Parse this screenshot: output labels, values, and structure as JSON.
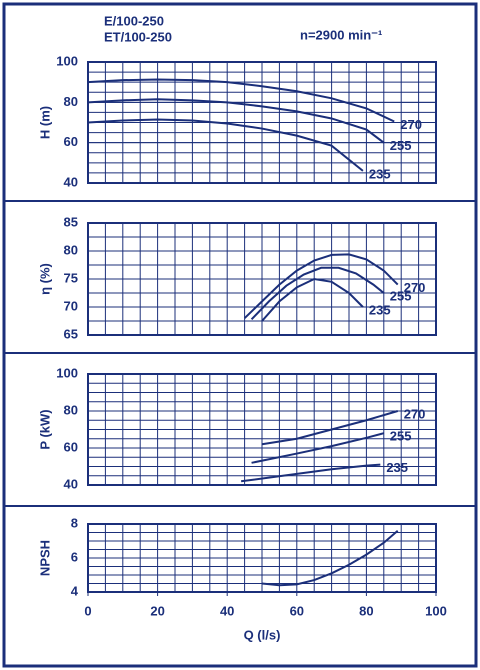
{
  "chart_data": [
    {
      "type": "line",
      "title": "E/100-250",
      "subtitle": "ET/100-250",
      "annotation": "n=2900 min⁻¹",
      "ylabel": "H (m)",
      "xlim": [
        0,
        100
      ],
      "ylim": [
        40,
        100
      ],
      "yticks": [
        40,
        60,
        80,
        100
      ],
      "grid": true,
      "series": [
        {
          "name": "270",
          "color": "#1b2f7a",
          "x": [
            0,
            10,
            20,
            30,
            40,
            50,
            60,
            70,
            80,
            88
          ],
          "values": [
            90,
            91,
            91.3,
            91,
            90,
            88,
            85.5,
            82,
            77,
            70.5
          ]
        },
        {
          "name": "255",
          "color": "#1b2f7a",
          "x": [
            0,
            10,
            20,
            30,
            40,
            50,
            60,
            70,
            80,
            85
          ],
          "values": [
            80,
            81,
            81.5,
            81,
            80,
            78,
            75.5,
            72,
            66.5,
            60
          ]
        },
        {
          "name": "235",
          "color": "#1b2f7a",
          "x": [
            0,
            10,
            20,
            30,
            40,
            50,
            60,
            70,
            79
          ],
          "values": [
            70,
            71,
            71.5,
            71,
            69.5,
            67,
            63.5,
            58.5,
            46
          ]
        }
      ]
    },
    {
      "type": "line",
      "ylabel": "η (%)",
      "xlim": [
        0,
        100
      ],
      "ylim": [
        65,
        85
      ],
      "yticks": [
        65,
        70,
        75,
        80,
        85
      ],
      "grid": true,
      "series": [
        {
          "name": "270",
          "color": "#1b2f7a",
          "x": [
            45,
            50,
            55,
            60,
            65,
            70,
            75,
            80,
            85,
            89
          ],
          "values": [
            68,
            71,
            74,
            76.5,
            78.3,
            79.3,
            79.4,
            78.5,
            76.5,
            74
          ]
        },
        {
          "name": "255",
          "color": "#1b2f7a",
          "x": [
            47,
            52,
            57,
            62,
            67,
            72,
            77,
            82,
            85
          ],
          "values": [
            67.8,
            71,
            73.8,
            75.8,
            77,
            77,
            76,
            74,
            72.5
          ]
        },
        {
          "name": "235",
          "color": "#1b2f7a",
          "x": [
            50,
            55,
            60,
            65,
            70,
            75,
            79
          ],
          "values": [
            67.5,
            71,
            73.5,
            75,
            74.5,
            72.5,
            70
          ]
        }
      ]
    },
    {
      "type": "line",
      "ylabel": "P (kW)",
      "xlim": [
        0,
        100
      ],
      "ylim": [
        40,
        100
      ],
      "yticks": [
        40,
        60,
        80,
        100
      ],
      "grid": true,
      "series": [
        {
          "name": "270",
          "color": "#1b2f7a",
          "x": [
            50,
            60,
            70,
            80,
            89
          ],
          "values": [
            62,
            65,
            70,
            75,
            80
          ]
        },
        {
          "name": "255",
          "color": "#1b2f7a",
          "x": [
            47,
            60,
            70,
            80,
            85
          ],
          "values": [
            52,
            57,
            61,
            65.5,
            68
          ]
        },
        {
          "name": "235",
          "color": "#1b2f7a",
          "x": [
            44,
            60,
            70,
            80,
            84
          ],
          "values": [
            42,
            46,
            48.5,
            50.5,
            51
          ]
        }
      ]
    },
    {
      "type": "line",
      "ylabel": "NPSH",
      "xlabel": "Q (l/s)",
      "xlim": [
        0,
        100
      ],
      "xticks": [
        0,
        20,
        40,
        60,
        80,
        100
      ],
      "ylim": [
        4,
        8
      ],
      "yticks": [
        4,
        6,
        8
      ],
      "grid": true,
      "series": [
        {
          "color": "#1b2f7a",
          "x": [
            50,
            55,
            60,
            65,
            70,
            75,
            80,
            85,
            89
          ],
          "values": [
            4.5,
            4.4,
            4.45,
            4.7,
            5.1,
            5.6,
            6.2,
            6.9,
            7.6
          ]
        }
      ]
    }
  ]
}
